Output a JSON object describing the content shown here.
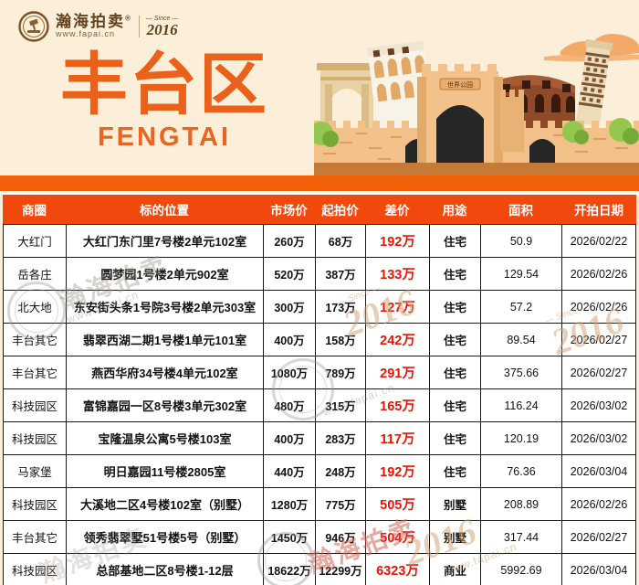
{
  "brand": {
    "name": "瀚海拍卖",
    "reg_mark": "®",
    "url": "www.fapai.cn",
    "since_label": "— Since —",
    "since_year": "2016"
  },
  "hero": {
    "title": "丰台区",
    "subtitle": "FENGTAI",
    "gate_sign": "世界公园"
  },
  "watermark": {
    "brand": "瀚海拍卖",
    "url": "www.fapai.cn",
    "year": "2016",
    "since": "— Since —"
  },
  "colors": {
    "page_bg": "#fcefd9",
    "title_orange": "#e9611b",
    "header_bg": "#f1480d",
    "diff_red": "#ee1300",
    "ground_orange": "#f2610a"
  },
  "table": {
    "headers": [
      "商圈",
      "标的位置",
      "市场价",
      "起拍价",
      "差价",
      "用途",
      "面积",
      "开拍日期"
    ],
    "rows": [
      [
        "大红门",
        "大红门东门里7号楼2单元102室",
        "260万",
        "68万",
        "192万",
        "住宅",
        "50.9",
        "2026/02/22"
      ],
      [
        "岳各庄",
        "圆梦园1号楼2单元902室",
        "520万",
        "387万",
        "133万",
        "住宅",
        "129.54",
        "2026/02/26"
      ],
      [
        "北大地",
        "东安街头条1号院3号楼2单元303室",
        "300万",
        "173万",
        "127万",
        "住宅",
        "57.2",
        "2026/02/26"
      ],
      [
        "丰台其它",
        "翡翠西湖二期1号楼1单元101室",
        "400万",
        "158万",
        "242万",
        "住宅",
        "89.54",
        "2026/02/27"
      ],
      [
        "丰台其它",
        "燕西华府34号楼4单元102室",
        "1080万",
        "789万",
        "291万",
        "住宅",
        "375.66",
        "2026/02/27"
      ],
      [
        "科技园区",
        "富锦嘉园一区8号楼3单元302室",
        "480万",
        "315万",
        "165万",
        "住宅",
        "116.24",
        "2026/03/02"
      ],
      [
        "科技园区",
        "宝隆温泉公寓5号楼103室",
        "400万",
        "283万",
        "117万",
        "住宅",
        "120.19",
        "2026/03/02"
      ],
      [
        "马家堡",
        "明日嘉园11号楼2805室",
        "440万",
        "248万",
        "192万",
        "住宅",
        "76.36",
        "2026/03/04"
      ],
      [
        "科技园区",
        "大溪地二区4号楼102室（别墅）",
        "1280万",
        "775万",
        "505万",
        "别墅",
        "208.89",
        "2026/02/26"
      ],
      [
        "丰台其它",
        "领秀翡翠墅51号楼5号（别墅）",
        "1450万",
        "946万",
        "504万",
        "别墅",
        "317.44",
        "2026/02/27"
      ],
      [
        "科技园区",
        "总部基地二区8号楼1-12层",
        "18622万",
        "12299万",
        "6323万",
        "商业",
        "5992.69",
        "2026/03/04"
      ]
    ]
  }
}
